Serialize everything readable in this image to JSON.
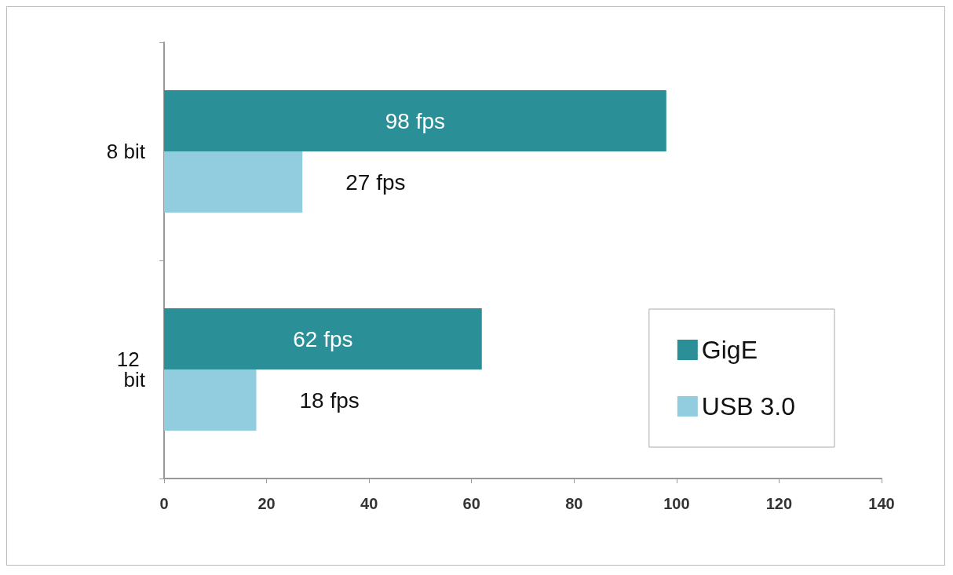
{
  "chart_data": {
    "type": "bar",
    "orientation": "horizontal",
    "categories": [
      "8 bit",
      "12 bit"
    ],
    "series": [
      {
        "name": "GigE",
        "color": "#2a8f96",
        "values": [
          98,
          62
        ],
        "value_labels": [
          "98 fps",
          "62 fps"
        ]
      },
      {
        "name": "USB 3.0",
        "color": "#92cddf",
        "values": [
          27,
          18
        ],
        "value_labels": [
          "27 fps",
          "18 fps"
        ]
      }
    ],
    "xlim": [
      0,
      140
    ],
    "xticks": [
      0,
      20,
      40,
      60,
      80,
      100,
      120,
      140
    ],
    "grid": false,
    "legend": "bottom right"
  }
}
